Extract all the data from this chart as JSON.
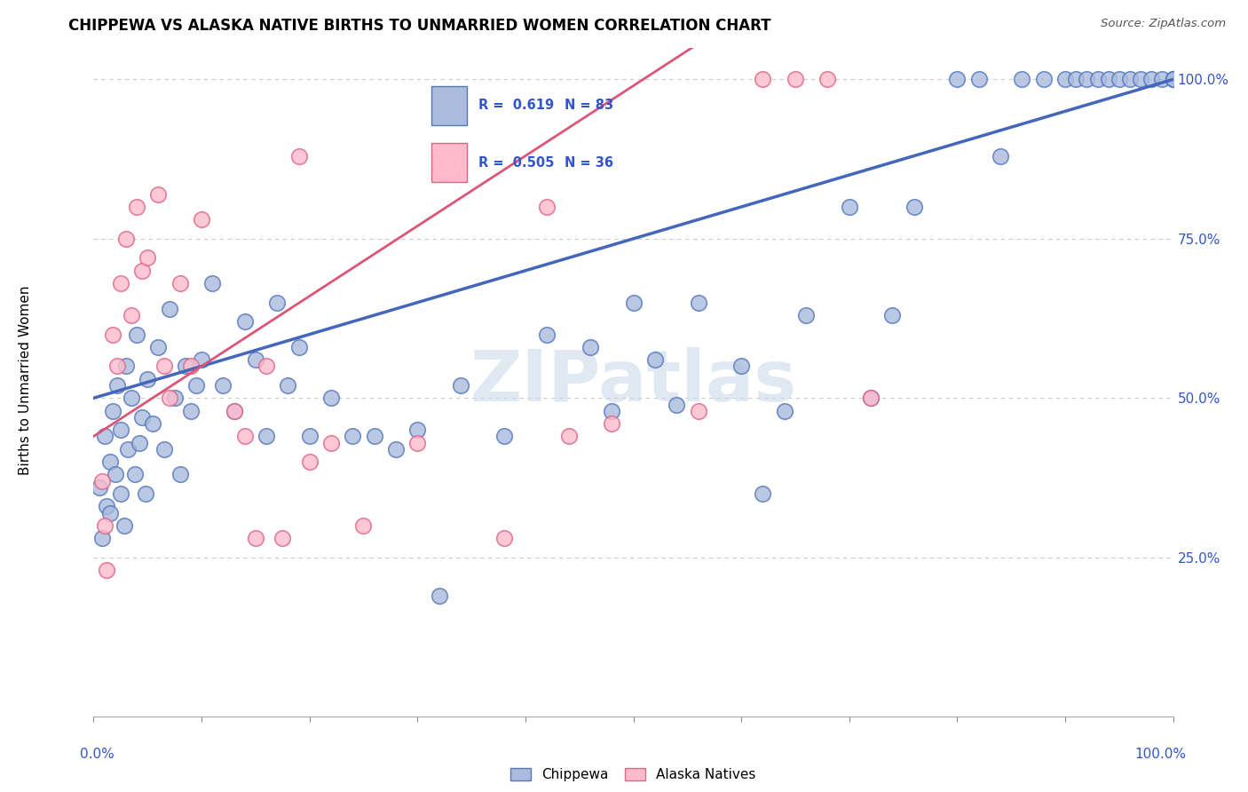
{
  "title": "CHIPPEWA VS ALASKA NATIVE BIRTHS TO UNMARRIED WOMEN CORRELATION CHART",
  "source": "Source: ZipAtlas.com",
  "ylabel": "Births to Unmarried Women",
  "legend_blue_R": 0.619,
  "legend_blue_N": 83,
  "legend_blue_label": "Chippewa",
  "legend_pink_R": 0.505,
  "legend_pink_N": 36,
  "legend_pink_label": "Alaska Natives",
  "xlim": [
    0.0,
    1.0
  ],
  "ylim": [
    0.0,
    1.05
  ],
  "blue_face_color": "#AABBDD",
  "blue_edge_color": "#5577BB",
  "pink_face_color": "#FFBBCC",
  "pink_edge_color": "#DD6688",
  "blue_line_color": "#4466BB",
  "pink_line_color": "#DD5577",
  "blue_intercept": 0.5,
  "blue_slope": 0.5,
  "pink_intercept": 0.44,
  "pink_slope": 1.1,
  "chippewa_x": [
    0.005,
    0.008,
    0.01,
    0.012,
    0.015,
    0.015,
    0.018,
    0.02,
    0.022,
    0.025,
    0.025,
    0.028,
    0.03,
    0.032,
    0.035,
    0.038,
    0.04,
    0.042,
    0.045,
    0.048,
    0.05,
    0.055,
    0.06,
    0.065,
    0.07,
    0.075,
    0.08,
    0.085,
    0.09,
    0.095,
    0.1,
    0.11,
    0.12,
    0.13,
    0.14,
    0.15,
    0.16,
    0.17,
    0.18,
    0.19,
    0.2,
    0.22,
    0.24,
    0.26,
    0.28,
    0.3,
    0.32,
    0.34,
    0.38,
    0.42,
    0.46,
    0.48,
    0.5,
    0.52,
    0.54,
    0.56,
    0.6,
    0.62,
    0.64,
    0.66,
    0.7,
    0.72,
    0.74,
    0.76,
    0.8,
    0.82,
    0.84,
    0.86,
    0.88,
    0.9,
    0.91,
    0.92,
    0.93,
    0.94,
    0.95,
    0.96,
    0.97,
    0.98,
    0.99,
    1.0,
    1.0,
    1.0,
    1.0
  ],
  "chippewa_y": [
    0.36,
    0.28,
    0.44,
    0.33,
    0.4,
    0.32,
    0.48,
    0.38,
    0.52,
    0.35,
    0.45,
    0.3,
    0.55,
    0.42,
    0.5,
    0.38,
    0.6,
    0.43,
    0.47,
    0.35,
    0.53,
    0.46,
    0.58,
    0.42,
    0.64,
    0.5,
    0.38,
    0.55,
    0.48,
    0.52,
    0.56,
    0.68,
    0.52,
    0.48,
    0.62,
    0.56,
    0.44,
    0.65,
    0.52,
    0.58,
    0.44,
    0.5,
    0.44,
    0.44,
    0.42,
    0.45,
    0.19,
    0.52,
    0.44,
    0.6,
    0.58,
    0.48,
    0.65,
    0.56,
    0.49,
    0.65,
    0.55,
    0.35,
    0.48,
    0.63,
    0.8,
    0.5,
    0.63,
    0.8,
    1.0,
    1.0,
    0.88,
    1.0,
    1.0,
    1.0,
    1.0,
    1.0,
    1.0,
    1.0,
    1.0,
    1.0,
    1.0,
    1.0,
    1.0,
    1.0,
    1.0,
    1.0,
    1.0
  ],
  "alaska_x": [
    0.008,
    0.01,
    0.012,
    0.018,
    0.022,
    0.025,
    0.03,
    0.035,
    0.04,
    0.045,
    0.05,
    0.06,
    0.065,
    0.07,
    0.08,
    0.09,
    0.1,
    0.13,
    0.14,
    0.15,
    0.16,
    0.175,
    0.19,
    0.2,
    0.22,
    0.25,
    0.3,
    0.38,
    0.42,
    0.44,
    0.48,
    0.56,
    0.62,
    0.65,
    0.68,
    0.72
  ],
  "alaska_y": [
    0.37,
    0.3,
    0.23,
    0.6,
    0.55,
    0.68,
    0.75,
    0.63,
    0.8,
    0.7,
    0.72,
    0.82,
    0.55,
    0.5,
    0.68,
    0.55,
    0.78,
    0.48,
    0.44,
    0.28,
    0.55,
    0.28,
    0.88,
    0.4,
    0.43,
    0.3,
    0.43,
    0.28,
    0.8,
    0.44,
    0.46,
    0.48,
    1.0,
    1.0,
    1.0,
    0.5
  ]
}
